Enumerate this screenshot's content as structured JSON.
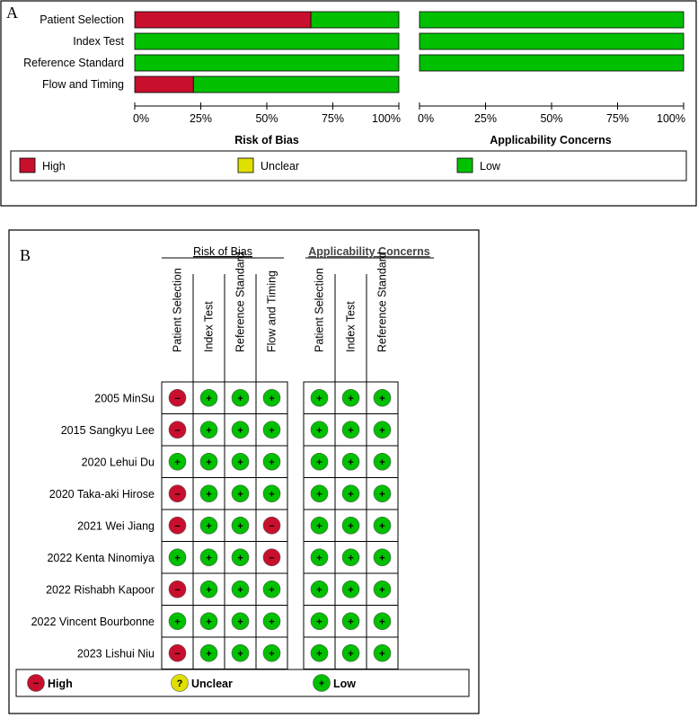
{
  "chart_data": [
    {
      "panel": "A",
      "type": "bar",
      "orientation": "horizontal",
      "stacked": true,
      "categories": [
        "Patient Selection",
        "Index Test",
        "Reference Standard",
        "Flow and Timing"
      ],
      "groups": [
        {
          "title": "Risk of Bias",
          "series": [
            {
              "name": "High",
              "color": "#c8102e",
              "values": [
                66.7,
                0,
                0,
                22.2
              ]
            },
            {
              "name": "Unclear",
              "color": "#e0e000",
              "values": [
                0,
                0,
                0,
                0
              ]
            },
            {
              "name": "Low",
              "color": "#00c000",
              "values": [
                33.3,
                100,
                100,
                77.8
              ]
            }
          ]
        },
        {
          "title": "Applicability Concerns",
          "categories": [
            "Patient Selection",
            "Index Test",
            "Reference Standard"
          ],
          "series": [
            {
              "name": "High",
              "color": "#c8102e",
              "values": [
                0,
                0,
                0
              ]
            },
            {
              "name": "Unclear",
              "color": "#e0e000",
              "values": [
                0,
                0,
                0
              ]
            },
            {
              "name": "Low",
              "color": "#00c000",
              "values": [
                100,
                100,
                100
              ]
            }
          ]
        }
      ],
      "xticks": [
        "0%",
        "25%",
        "50%",
        "75%",
        "100%"
      ],
      "xlim": [
        0,
        100
      ],
      "legend": {
        "position": "bottom",
        "items": [
          "High",
          "Unclear",
          "Low"
        ]
      }
    },
    {
      "panel": "B",
      "type": "table",
      "group_headers": [
        "Risk of Bias",
        "Applicability Concerns"
      ],
      "rob_columns": [
        "Patient Selection",
        "Index Test",
        "Reference Standard",
        "Flow and Timing"
      ],
      "ac_columns": [
        "Patient Selection",
        "Index Test",
        "Reference Standard"
      ],
      "rows": [
        {
          "study": "2005 MinSu",
          "rob": [
            "high",
            "low",
            "low",
            "low"
          ],
          "ac": [
            "low",
            "low",
            "low"
          ]
        },
        {
          "study": "2015 Sangkyu Lee",
          "rob": [
            "high",
            "low",
            "low",
            "low"
          ],
          "ac": [
            "low",
            "low",
            "low"
          ]
        },
        {
          "study": "2020 Lehui Du",
          "rob": [
            "low",
            "low",
            "low",
            "low"
          ],
          "ac": [
            "low",
            "low",
            "low"
          ]
        },
        {
          "study": "2020 Taka-aki Hirose",
          "rob": [
            "high",
            "low",
            "low",
            "low"
          ],
          "ac": [
            "low",
            "low",
            "low"
          ]
        },
        {
          "study": "2021 Wei Jiang",
          "rob": [
            "high",
            "low",
            "low",
            "high"
          ],
          "ac": [
            "low",
            "low",
            "low"
          ]
        },
        {
          "study": "2022 Kenta Ninomiya",
          "rob": [
            "low",
            "low",
            "low",
            "high"
          ],
          "ac": [
            "low",
            "low",
            "low"
          ]
        },
        {
          "study": "2022 Rishabh Kapoor",
          "rob": [
            "high",
            "low",
            "low",
            "low"
          ],
          "ac": [
            "low",
            "low",
            "low"
          ]
        },
        {
          "study": "2022 Vincent Bourbonne",
          "rob": [
            "low",
            "low",
            "low",
            "low"
          ],
          "ac": [
            "low",
            "low",
            "low"
          ]
        },
        {
          "study": "2023 Lishui Niu",
          "rob": [
            "high",
            "low",
            "low",
            "low"
          ],
          "ac": [
            "low",
            "low",
            "low"
          ]
        }
      ],
      "symbols": {
        "high": "−",
        "unclear": "?",
        "low": "+"
      },
      "colors": {
        "high": "#c8102e",
        "unclear": "#e0e000",
        "low": "#00c000"
      },
      "legend": {
        "position": "bottom",
        "items": [
          "High",
          "Unclear",
          "Low"
        ]
      }
    }
  ]
}
